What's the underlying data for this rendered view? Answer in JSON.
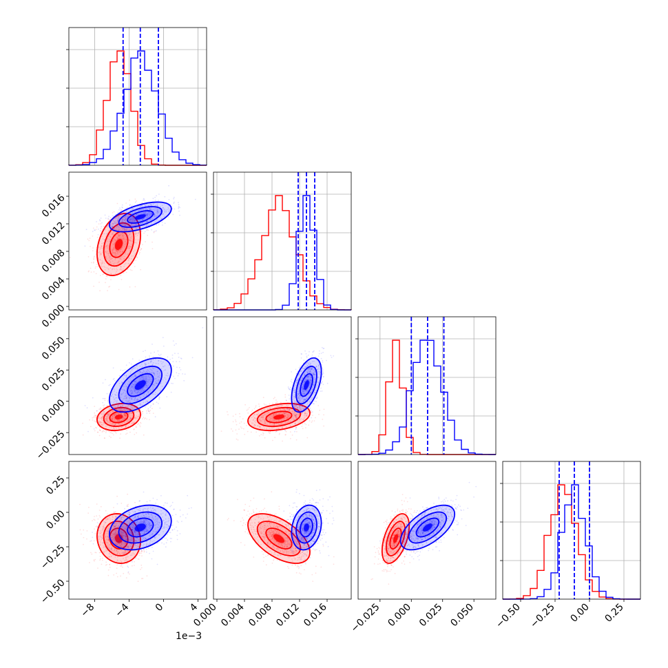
{
  "chart_data": {
    "type": "corner",
    "parameters": [
      {
        "range": [
          -11,
          5
        ],
        "ticks": [
          -8,
          -4,
          0,
          4
        ],
        "tick_labels": [
          "−8",
          "−4",
          "0",
          "4"
        ],
        "offset_text": "1e−3"
      },
      {
        "range": [
          -0.0005,
          0.0195
        ],
        "ticks": [
          0.0,
          0.004,
          0.008,
          0.012,
          0.016
        ],
        "tick_labels": [
          "0.000",
          "0.004",
          "0.008",
          "0.012",
          "0.016"
        ]
      },
      {
        "range": [
          -0.0425,
          0.0675
        ],
        "ticks": [
          -0.025,
          0.0,
          0.025,
          0.05
        ],
        "tick_labels": [
          "−0.025",
          "0.000",
          "0.025",
          "0.050"
        ]
      },
      {
        "range": [
          -0.63,
          0.37
        ],
        "ticks": [
          -0.5,
          -0.25,
          0.0,
          0.25
        ],
        "tick_labels": [
          "−0.50",
          "−0.25",
          "0.00",
          "0.25"
        ]
      }
    ],
    "series": [
      {
        "name": "red",
        "color": "#ff0000",
        "mean": [
          -5.2,
          0.009,
          -0.0125,
          -0.19
        ],
        "std": [
          1.4,
          0.0025,
          0.006,
          0.1
        ],
        "corr": [
          [
            1,
            0.3,
            0.2,
            -0.1
          ],
          [
            0.3,
            1,
            0.3,
            -0.55
          ],
          [
            0.2,
            0.3,
            1,
            0.5
          ],
          [
            -0.1,
            -0.55,
            0.5,
            1
          ]
        ]
      },
      {
        "name": "blue",
        "color": "#0000ff",
        "mean": [
          -2.7,
          0.013,
          0.013,
          -0.11
        ],
        "std": [
          2.0,
          0.0012,
          0.012,
          0.09
        ],
        "corr": [
          [
            1,
            0.55,
            0.55,
            0.3
          ],
          [
            0.55,
            1,
            0.5,
            0.2
          ],
          [
            0.55,
            0.5,
            1,
            0.6
          ],
          [
            0.3,
            0.2,
            0.6,
            1
          ]
        ]
      }
    ],
    "quantiles": [
      [
        -4.7,
        -2.7,
        -0.6
      ],
      [
        0.0118,
        0.013,
        0.0142
      ],
      [
        0.0,
        0.013,
        0.026
      ],
      [
        -0.22,
        -0.11,
        0.0
      ]
    ],
    "grid": true
  }
}
